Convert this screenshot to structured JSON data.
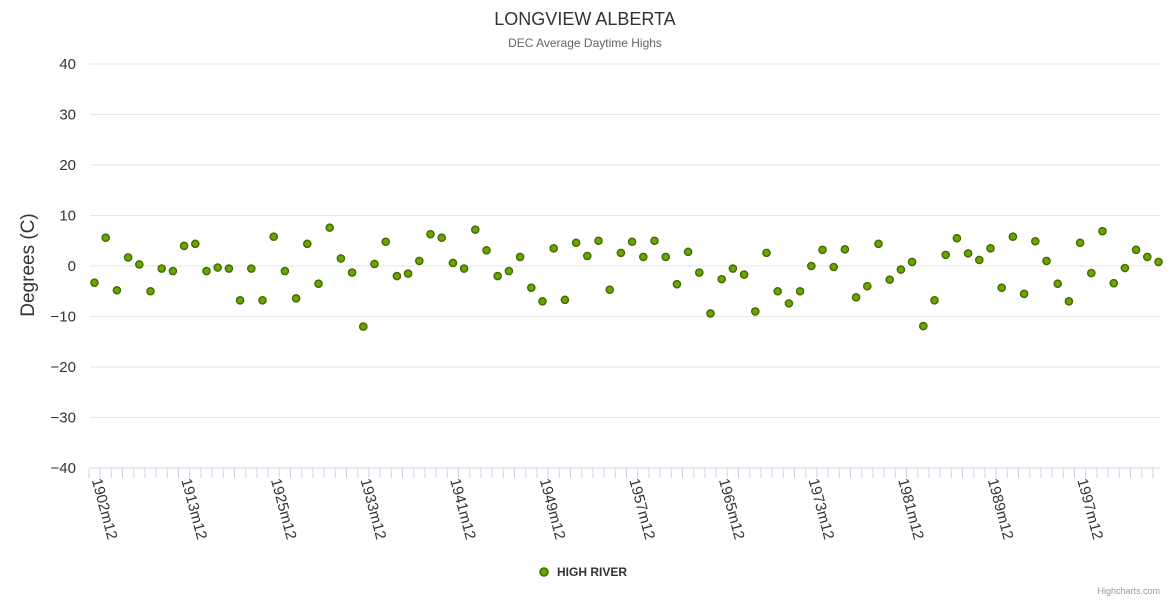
{
  "chart_data": {
    "type": "scatter",
    "title": "LONGVIEW ALBERTA",
    "subtitle": "DEC Average Daytime Highs",
    "ylabel": "Degrees (C)",
    "xlabel": "",
    "ylim": [
      -40,
      40
    ],
    "yticks": [
      40,
      30,
      20,
      10,
      0,
      -10,
      -20,
      -30,
      -40
    ],
    "ytick_labels": [
      "40",
      "30",
      "20",
      "10",
      "0",
      "−10",
      "−20",
      "−30",
      "−40"
    ],
    "grid": true,
    "legend_position": "bottom-center",
    "x_tick_labels": [
      {
        "index": 1,
        "label": "1902m12"
      },
      {
        "index": 9,
        "label": "1913m12"
      },
      {
        "index": 17,
        "label": "1925m12"
      },
      {
        "index": 25,
        "label": "1933m12"
      },
      {
        "index": 33,
        "label": "1941m12"
      },
      {
        "index": 41,
        "label": "1949m12"
      },
      {
        "index": 49,
        "label": "1957m12"
      },
      {
        "index": 57,
        "label": "1965m12"
      },
      {
        "index": 65,
        "label": "1973m12"
      },
      {
        "index": 73,
        "label": "1981m12"
      },
      {
        "index": 81,
        "label": "1989m12"
      },
      {
        "index": 89,
        "label": "1997m12"
      }
    ],
    "series": [
      {
        "name": "HIGH RIVER",
        "color": "#6aa500",
        "stroke": "#3f6b00",
        "values": [
          -3.3,
          5.6,
          -4.8,
          1.7,
          0.3,
          -5.0,
          -0.5,
          -1.0,
          4.0,
          4.4,
          -1.0,
          -0.3,
          -0.5,
          -6.8,
          -0.5,
          -6.8,
          5.8,
          -1.0,
          -6.4,
          4.4,
          -3.5,
          7.6,
          1.5,
          -1.3,
          -12.0,
          0.4,
          4.8,
          -2.0,
          -1.5,
          1.0,
          6.3,
          5.6,
          0.6,
          -0.5,
          7.2,
          3.1,
          -2.0,
          -1.0,
          1.8,
          -4.3,
          -7.0,
          3.5,
          -6.7,
          4.6,
          2.0,
          5.0,
          -4.7,
          2.6,
          4.8,
          1.8,
          5.0,
          1.8,
          -3.6,
          2.8,
          -1.3,
          -9.4,
          -2.6,
          -0.5,
          -1.7,
          -9.0,
          2.6,
          -5.0,
          -7.4,
          -5.0,
          0.0,
          3.2,
          -0.2,
          3.3,
          -6.2,
          -4.0,
          4.4,
          -2.7,
          -0.7,
          0.8,
          -11.9,
          -6.8,
          2.2,
          5.5,
          2.5,
          1.2,
          3.5,
          -4.3,
          5.8,
          -5.5,
          4.9,
          1.0,
          -3.5,
          -7.0,
          4.6,
          -1.4,
          6.9,
          -3.4,
          -0.4,
          3.2,
          1.8,
          0.8
        ]
      }
    ]
  },
  "credits": "Highcharts.com"
}
